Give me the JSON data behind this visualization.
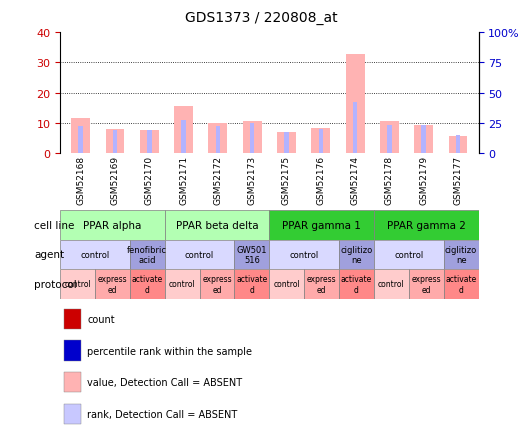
{
  "title": "GDS1373 / 220808_at",
  "samples": [
    "GSM52168",
    "GSM52169",
    "GSM52170",
    "GSM52171",
    "GSM52172",
    "GSM52173",
    "GSM52175",
    "GSM52176",
    "GSM52174",
    "GSM52178",
    "GSM52179",
    "GSM52177"
  ],
  "bar_values": [
    11.5,
    8.0,
    7.8,
    15.5,
    10.0,
    10.5,
    7.2,
    8.3,
    32.5,
    10.5,
    9.2,
    5.8
  ],
  "rank_values": [
    9.0,
    7.8,
    7.6,
    11.0,
    9.0,
    10.0,
    7.0,
    8.1,
    17.0,
    9.3,
    9.2,
    6.0
  ],
  "bar_color": "#ffb3b3",
  "rank_color": "#b3b3ff",
  "ylim_left": [
    0,
    40
  ],
  "ylim_right": [
    0,
    100
  ],
  "yticks_left": [
    0,
    10,
    20,
    30,
    40
  ],
  "ytick_labels_right": [
    "0",
    "25",
    "50",
    "75",
    "100%"
  ],
  "cell_line_labels": [
    "PPAR alpha",
    "PPAR beta delta",
    "PPAR gamma 1",
    "PPAR gamma 2"
  ],
  "cell_line_spans": [
    [
      0,
      3
    ],
    [
      3,
      6
    ],
    [
      6,
      9
    ],
    [
      9,
      12
    ]
  ],
  "cell_line_colors": [
    "#b3ffb3",
    "#b3ffb3",
    "#33cc33",
    "#33cc33"
  ],
  "agent_groups": [
    {
      "label": "control",
      "span": [
        0,
        2
      ],
      "color": "#d9d9ff"
    },
    {
      "label": "fenofibric\nacid",
      "span": [
        2,
        3
      ],
      "color": "#a0a0dd"
    },
    {
      "label": "control",
      "span": [
        3,
        5
      ],
      "color": "#d9d9ff"
    },
    {
      "label": "GW501\n516",
      "span": [
        5,
        6
      ],
      "color": "#a0a0dd"
    },
    {
      "label": "control",
      "span": [
        6,
        8
      ],
      "color": "#d9d9ff"
    },
    {
      "label": "ciglitizo\nne",
      "span": [
        8,
        9
      ],
      "color": "#a0a0dd"
    },
    {
      "label": "control",
      "span": [
        9,
        11
      ],
      "color": "#d9d9ff"
    },
    {
      "label": "ciglitizo\nne",
      "span": [
        11,
        12
      ],
      "color": "#a0a0dd"
    }
  ],
  "protocol_groups": [
    {
      "label": "control",
      "span": [
        0,
        1
      ],
      "color": "#ffcccc"
    },
    {
      "label": "express\ned",
      "span": [
        1,
        2
      ],
      "color": "#ffaaaa"
    },
    {
      "label": "activate\nd",
      "span": [
        2,
        3
      ],
      "color": "#ff8888"
    },
    {
      "label": "control",
      "span": [
        3,
        4
      ],
      "color": "#ffcccc"
    },
    {
      "label": "express\ned",
      "span": [
        4,
        5
      ],
      "color": "#ffaaaa"
    },
    {
      "label": "activate\nd",
      "span": [
        5,
        6
      ],
      "color": "#ff8888"
    },
    {
      "label": "control",
      "span": [
        6,
        7
      ],
      "color": "#ffcccc"
    },
    {
      "label": "express\ned",
      "span": [
        7,
        8
      ],
      "color": "#ffaaaa"
    },
    {
      "label": "activate\nd",
      "span": [
        8,
        9
      ],
      "color": "#ff8888"
    },
    {
      "label": "control",
      "span": [
        9,
        10
      ],
      "color": "#ffcccc"
    },
    {
      "label": "express\ned",
      "span": [
        10,
        11
      ],
      "color": "#ffaaaa"
    },
    {
      "label": "activate\nd",
      "span": [
        11,
        12
      ],
      "color": "#ff8888"
    }
  ],
  "legend_items": [
    {
      "label": "count",
      "color": "#cc0000"
    },
    {
      "label": "percentile rank within the sample",
      "color": "#0000cc"
    },
    {
      "label": "value, Detection Call = ABSENT",
      "color": "#ffb3b3"
    },
    {
      "label": "rank, Detection Call = ABSENT",
      "color": "#c8c8ff"
    }
  ],
  "left_ycolor": "#cc0000",
  "right_ycolor": "#0000cc",
  "bg_color": "#ffffff",
  "sample_bg": "#d9d9d9",
  "row_labels": [
    "cell line",
    "agent",
    "protocol"
  ]
}
